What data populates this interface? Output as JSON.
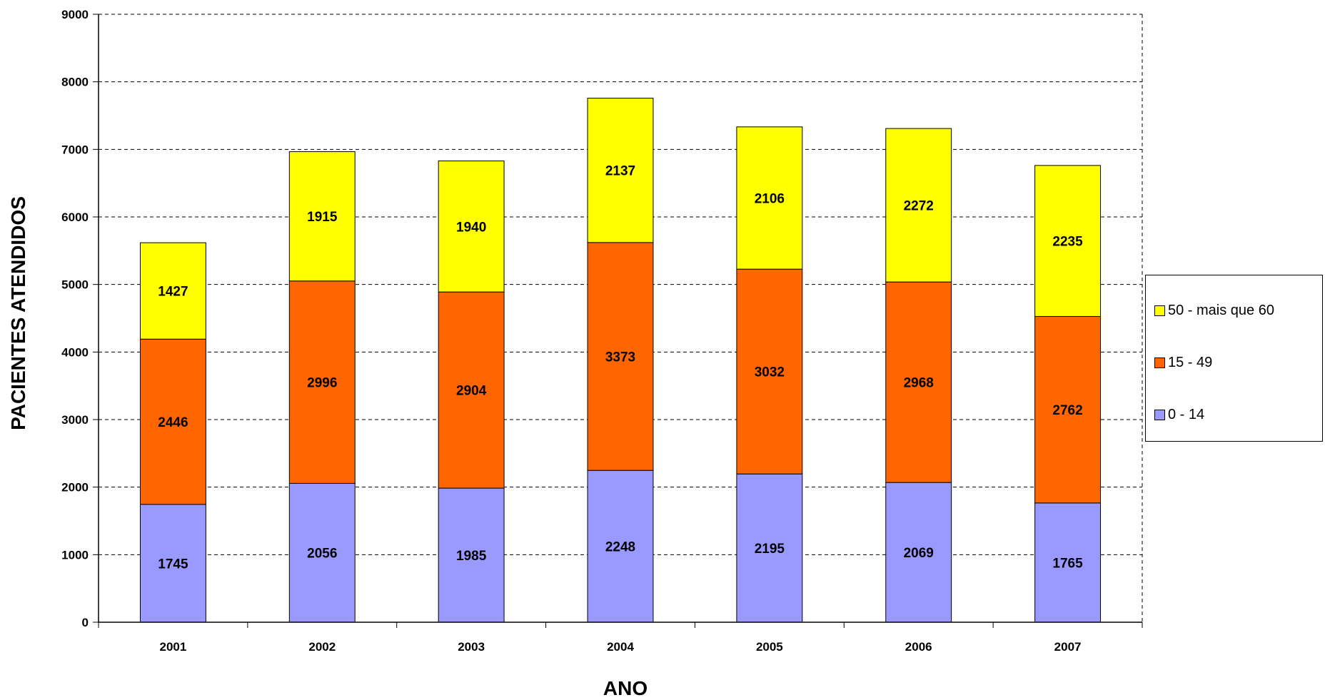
{
  "chart_data": {
    "type": "bar",
    "stacked": true,
    "categories": [
      "2001",
      "2002",
      "2003",
      "2004",
      "2005",
      "2006",
      "2007"
    ],
    "series": [
      {
        "name": "0 - 14",
        "color": "#9999ff",
        "values": [
          1745,
          2056,
          1985,
          2248,
          2195,
          2069,
          1765
        ]
      },
      {
        "name": "15 - 49",
        "color": "#ff6600",
        "values": [
          2446,
          2996,
          2904,
          3373,
          3032,
          2968,
          2762
        ]
      },
      {
        "name": "50 - mais que 60",
        "color": "#ffff00",
        "values": [
          1427,
          1915,
          1940,
          2137,
          2106,
          2272,
          2235
        ]
      }
    ],
    "xlabel": "ANO",
    "ylabel": "PACIENTES ATENDIDOS",
    "ylim": [
      0,
      9000
    ],
    "yticks": [
      0,
      1000,
      2000,
      3000,
      4000,
      5000,
      6000,
      7000,
      8000,
      9000
    ],
    "grid": true,
    "legend_position": "right",
    "data_labels": true
  }
}
